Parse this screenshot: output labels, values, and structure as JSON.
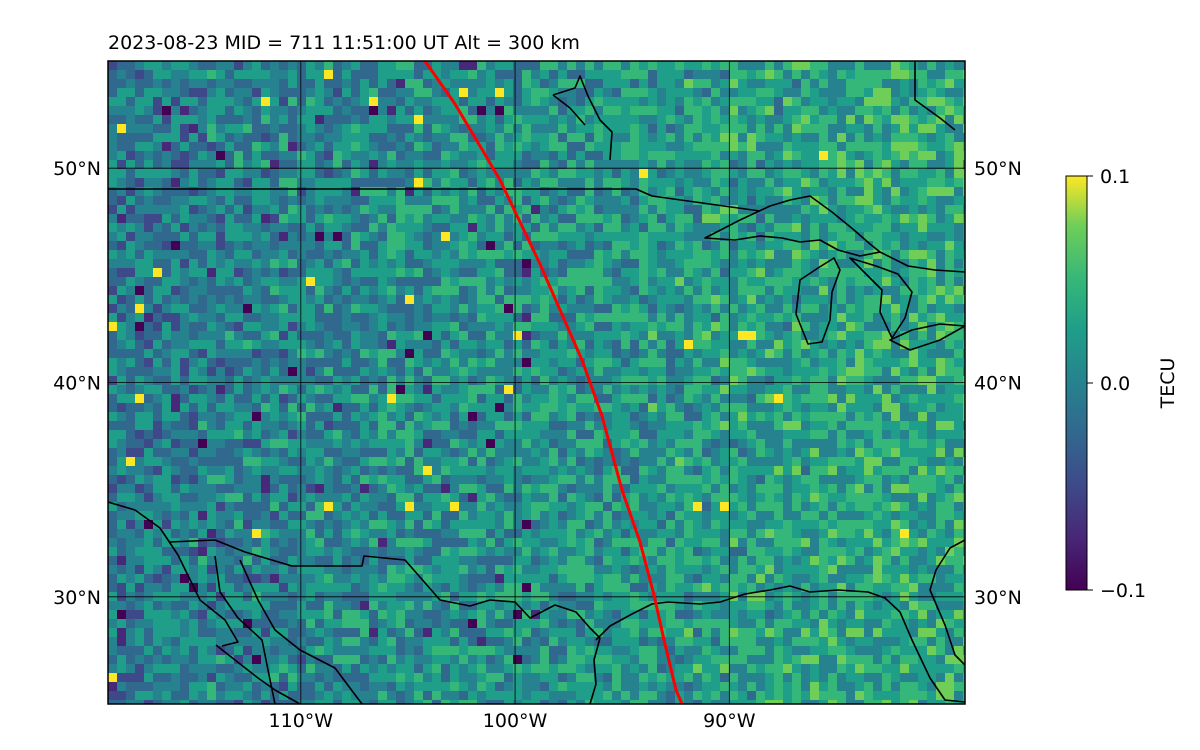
{
  "title": "2023-08-23  MID = 711    11:51:00  UT  Alt = 300 km",
  "map": {
    "lon_range": [
      -119,
      -79
    ],
    "lat_range": [
      25,
      55
    ],
    "lon_ticks": [
      {
        "value": -110,
        "label": "110°W"
      },
      {
        "value": -100,
        "label": "100°W"
      },
      {
        "value": -90,
        "label": "90°W"
      }
    ],
    "lat_ticks": [
      {
        "value": 50,
        "label": "50°N"
      },
      {
        "value": 40,
        "label": "40°N"
      },
      {
        "value": 30,
        "label": "30°N"
      }
    ],
    "field": "TEC perturbation map (dTEC) with mostly near-zero values, scattered negative pixels in the western plains and positive streaks near the Great Lakes and Gulf coast",
    "track_color": "#ff0000",
    "coast_color": "#000000",
    "gridline_color": "#000000"
  },
  "colorbar": {
    "label": "TECU",
    "colormap": "viridis",
    "ticks": [
      {
        "value": 0.1,
        "label": "0.1"
      },
      {
        "value": 0.0,
        "label": "0.0"
      },
      {
        "value": -0.1,
        "label": "−0.1"
      }
    ],
    "vmin": -0.1,
    "vmax": 0.1
  }
}
